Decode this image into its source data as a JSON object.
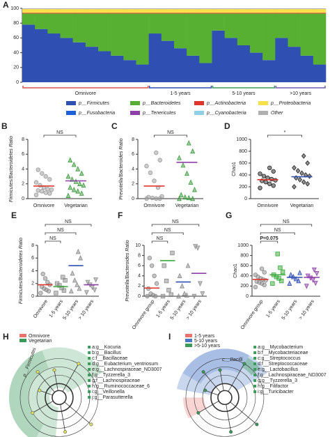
{
  "chart_data": [
    {
      "type": "stacked",
      "title": "A",
      "categories": [
        null,
        null,
        null,
        null,
        null,
        null,
        null,
        null,
        null,
        null,
        null,
        null,
        null,
        null,
        null,
        null,
        null,
        null,
        null,
        null,
        null,
        null,
        null,
        null
      ],
      "ylim": [
        0,
        100
      ],
      "yticks": [
        0,
        20,
        40,
        60,
        80,
        100
      ],
      "groups": [
        "Omnivore",
        "1-5 years",
        "5-10 years",
        ">10 years"
      ],
      "group_colors": [
        "#d9534f",
        "#2f4fb3",
        "#3a9a5a",
        "#6b5bb0"
      ],
      "series": [
        {
          "name": "p__Firmicutes",
          "color": "#2f4fb3",
          "values": [
            78,
            72,
            66,
            60,
            54,
            48,
            42,
            36,
            30,
            24,
            66,
            56,
            46,
            36,
            26,
            70,
            60,
            50,
            40,
            30,
            60,
            48,
            36,
            24
          ]
        },
        {
          "name": "p__Bacteroidetes",
          "color": "#58b032",
          "values": [
            15,
            21,
            27,
            33,
            39,
            45,
            51,
            57,
            63,
            69,
            27,
            37,
            47,
            57,
            67,
            23,
            33,
            43,
            53,
            63,
            33,
            45,
            57,
            69
          ]
        },
        {
          "name": "p__Actinobacteria",
          "color": "#e0352b",
          "values": [
            1,
            1,
            1,
            1,
            1,
            1,
            1,
            1,
            1,
            1,
            1,
            1,
            1,
            1,
            1,
            1,
            1,
            1,
            1,
            1,
            1,
            1,
            1,
            1
          ]
        },
        {
          "name": "p__Proteobacteria",
          "color": "#f6e14b",
          "values": [
            5,
            5,
            5,
            5,
            5,
            5,
            5,
            5,
            5,
            5,
            5,
            5,
            5,
            5,
            5,
            5,
            5,
            5,
            5,
            5,
            5,
            5,
            5,
            5
          ]
        },
        {
          "name": "p__Fusobacteria",
          "color": "#1c5fd6",
          "values": [
            0,
            0,
            0,
            0,
            0,
            0,
            0,
            0,
            0,
            0,
            0,
            0,
            0,
            0,
            0,
            0,
            0,
            0,
            0,
            0,
            0,
            0,
            0,
            0
          ]
        },
        {
          "name": "p__Tenericutes",
          "color": "#8e3fa8",
          "values": [
            0,
            0,
            0,
            0,
            0,
            0,
            0,
            0,
            0,
            0,
            0,
            0,
            0,
            0,
            0,
            0,
            0,
            0,
            0,
            0,
            0,
            0,
            0,
            0
          ]
        },
        {
          "name": "p__Cyanobacteria",
          "color": "#8fd0e8",
          "values": [
            0,
            0,
            0,
            0,
            0,
            0,
            0,
            0,
            0,
            0,
            0,
            0,
            0,
            0,
            0,
            0,
            0,
            0,
            0,
            0,
            0,
            0,
            0,
            0
          ]
        },
        {
          "name": "Other",
          "color": "#b0b0b0",
          "values": [
            1,
            1,
            1,
            1,
            1,
            1,
            1,
            1,
            1,
            1,
            1,
            1,
            1,
            1,
            1,
            1,
            1,
            1,
            1,
            1,
            1,
            1,
            1,
            1
          ]
        }
      ]
    },
    {
      "type": "dot",
      "title": "B",
      "ylabel": "Firmicutes/Bacteroidetes Ratio",
      "categories": [
        "Omnivore",
        "Vegetarian"
      ],
      "ylim": [
        0,
        8
      ],
      "yticks": [
        0,
        2,
        4,
        6,
        8
      ],
      "markers": [
        "circle",
        "triangle"
      ],
      "colors": [
        "#9a9a9a",
        "#3a9a3a"
      ],
      "mean_colors": [
        "#e0352b",
        "#8e3fa8"
      ],
      "groups": [
        [
          0.5,
          0.7,
          0.8,
          1.0,
          1.1,
          1.2,
          1.3,
          1.5,
          1.8,
          2.2,
          2.6,
          3.0,
          3.4,
          3.9
        ],
        [
          0.4,
          0.7,
          1.0,
          1.2,
          1.5,
          1.8,
          2.0,
          2.3,
          2.6,
          3.0,
          3.4,
          4.0,
          4.6,
          5.2
        ]
      ],
      "means": [
        1.7,
        2.4
      ],
      "annotations": [
        "NS"
      ]
    },
    {
      "type": "dot",
      "title": "C",
      "ylabel": "Prevotella/Bacteroides Ratio",
      "categories": [
        "Omnivore",
        "Vegetarian"
      ],
      "ylim": [
        0,
        8
      ],
      "yticks": [
        0,
        2,
        4,
        6,
        8
      ],
      "markers": [
        "circle",
        "triangle"
      ],
      "colors": [
        "#9a9a9a",
        "#3a9a3a"
      ],
      "mean_colors": [
        "#e0352b",
        "#8e3fa8"
      ],
      "groups": [
        [
          0,
          0,
          0,
          0.1,
          0.2,
          0.3,
          1.5,
          2.4,
          3.5,
          4.4,
          5.2,
          6.2
        ],
        [
          0,
          0,
          0.1,
          0.2,
          0.5,
          1.2,
          2.2,
          3.4,
          4.5,
          5.5,
          6.4,
          7.5
        ]
      ],
      "means": [
        1.7,
        4.9
      ],
      "annotations": [
        "NS"
      ]
    },
    {
      "type": "dot",
      "title": "D",
      "ylabel": "Chao1",
      "categories": [
        "Omnivore",
        "Vegetarian"
      ],
      "ylim": [
        0,
        1000
      ],
      "yticks": [
        0,
        200,
        400,
        600,
        800,
        1000
      ],
      "markers": [
        "circle",
        "diamond"
      ],
      "colors": [
        "#222222",
        "#222222"
      ],
      "mean_colors": [
        "#e0352b",
        "#2f4fb3"
      ],
      "groups": [
        [
          180,
          220,
          250,
          280,
          300,
          310,
          330,
          350,
          380,
          420,
          460,
          520
        ],
        [
          200,
          250,
          280,
          320,
          350,
          380,
          400,
          430,
          470,
          520,
          600,
          720
        ]
      ],
      "means": [
        320,
        370
      ],
      "annotations": [
        "*"
      ]
    },
    {
      "type": "dot",
      "title": "E",
      "ylabel": "Firmicutes/Bacteroidetes Ratio",
      "categories": [
        "Omnivore",
        "1-5 years",
        "5-10 years",
        "> 10 years"
      ],
      "ylim": [
        0,
        8
      ],
      "yticks": [
        0,
        2,
        4,
        6,
        8
      ],
      "markers": [
        "circle",
        "square",
        "triangle",
        "invtriangle"
      ],
      "colors": [
        "#8a8a8a",
        "#8a8a8a",
        "#8a8a8a",
        "#8a8a8a"
      ],
      "mean_colors": [
        "#e0352b",
        "#3aaa3a",
        "#2f4fb3",
        "#8e3fa8"
      ],
      "groups": [
        [
          0.5,
          0.8,
          1.0,
          1.2,
          1.5,
          1.8,
          2.2,
          2.8,
          3.5
        ],
        [
          0.5,
          0.9,
          1.3,
          1.7,
          2.0,
          2.5,
          3.0
        ],
        [
          0.8,
          1.2,
          1.8,
          2.5,
          3.6,
          6.0,
          7.0
        ],
        [
          0.6,
          1.0,
          1.4,
          1.8,
          2.2,
          2.6
        ]
      ],
      "means": [
        1.8,
        1.5,
        4.8,
        1.8
      ],
      "annotations": [
        "NS",
        "NS",
        "NS"
      ]
    },
    {
      "type": "dot",
      "title": "F",
      "ylabel": "Prevotella/Bacteroides Ratio",
      "categories": [
        "Omnivore group",
        "1-5 years",
        "5-10 years",
        "> 10 years"
      ],
      "ylim": [
        0,
        10
      ],
      "yticks": [
        0,
        2,
        4,
        6,
        8,
        10
      ],
      "markers": [
        "circle",
        "square",
        "triangle",
        "invtriangle"
      ],
      "colors": [
        "#8a8a8a",
        "#8a8a8a",
        "#8a8a8a",
        "#8a8a8a"
      ],
      "mean_colors": [
        "#e0352b",
        "#3aaa3a",
        "#2f4fb3",
        "#8e3fa8"
      ],
      "groups": [
        [
          0,
          0,
          0.2,
          0.5,
          1.5,
          2.5,
          4.0,
          6.0,
          7.5
        ],
        [
          0,
          0.3,
          1.2,
          3.0,
          6.0,
          8.5
        ],
        [
          0,
          0.2,
          0.5,
          2.0,
          4.0,
          6.0
        ],
        [
          0,
          0.5,
          2.5,
          9.5,
          9.8
        ]
      ],
      "means": [
        1.6,
        7.0,
        2.8,
        4.5
      ],
      "annotations": [
        "NS",
        "NS",
        "NS"
      ]
    },
    {
      "type": "dot",
      "title": "G",
      "ylabel": "Chao1",
      "categories": [
        "Omnivore group",
        "1-5 years",
        "5-10 years",
        "> 10 years"
      ],
      "ylim": [
        0,
        1000
      ],
      "yticks": [
        0,
        200,
        400,
        600,
        800,
        1000
      ],
      "markers": [
        "circle",
        "square",
        "triangle",
        "invtriangle"
      ],
      "colors": [
        "#8a8a8a",
        "#3aaa3a",
        "#2f4fb3",
        "#8e3fa8"
      ],
      "mean_colors": [
        "#e0352b",
        "#3aaa3a",
        "#2f4fb3",
        "#8e3fa8"
      ],
      "groups": [
        [
          180,
          220,
          250,
          270,
          290,
          310,
          330,
          350,
          380,
          420,
          470,
          540
        ],
        [
          250,
          300,
          350,
          380,
          420,
          480,
          560,
          830
        ],
        [
          250,
          300,
          340,
          380,
          420,
          460
        ],
        [
          200,
          260,
          320,
          360,
          400,
          450,
          520
        ]
      ],
      "means": [
        330,
        420,
        370,
        370
      ],
      "annotations": [
        "P=0.075",
        "NS",
        "NS"
      ]
    },
    {
      "type": "cladogram",
      "title": "H",
      "legend": [
        {
          "name": "Omnivore",
          "color": "#e8736b"
        },
        {
          "name": "Vegetarian",
          "color": "#3a9a5a"
        }
      ],
      "clade": "p__Firmicutes",
      "labels": [
        "a:g__Kocuria",
        "b:g__Bacillus",
        "c:f__Bacillaceae",
        "d:g__Eubacterium_ventriosum",
        "e:g__Lachnospiraceae_ND3007",
        "f:g__Tyzzerella_3",
        "g:f__Lachnospiraceae",
        "h:g__Ruminococcaceae_6",
        "i:g__Veillonella",
        "j:g__Parasutterella"
      ]
    },
    {
      "type": "cladogram",
      "title": "I",
      "legend": [
        {
          "name": "1-5 years",
          "color": "#e8736b"
        },
        {
          "name": "5-10 years",
          "color": "#4a78c8"
        },
        {
          "name": ">5-10 years",
          "color": "#3a9a5a"
        }
      ],
      "clade": "c__Bacilli",
      "labels": [
        "a:g__Mycobacterium",
        "b:f__Mycobacteriaceae",
        "c:g__Streptococcus",
        "d:f__Streptococcaceae",
        "e:g__Lactobacillus",
        "f:g__Lachnospiraceae_ND3007",
        "g:g__Tyzzerella_3",
        "h:g__Filifactor",
        "i:g__Turicibacter"
      ]
    }
  ]
}
